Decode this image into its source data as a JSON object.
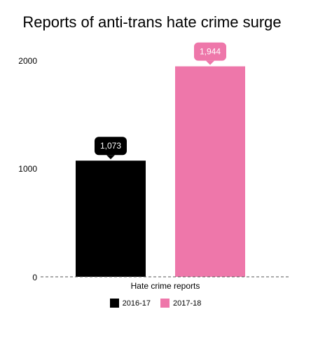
{
  "chart_data": {
    "type": "bar",
    "title": "Reports of anti-trans hate crime surge",
    "categories": [
      "Hate crime reports"
    ],
    "xlabel": "Hate crime reports",
    "ylabel": "",
    "ylim": [
      0,
      2000
    ],
    "yticks": [
      "0",
      "1000",
      "2000"
    ],
    "grid": false,
    "legend_position": "bottom",
    "series": [
      {
        "name": "2016-17",
        "values": [
          1073
        ],
        "label": "1,073",
        "color": "#000000"
      },
      {
        "name": "2017-18",
        "values": [
          1944
        ],
        "label": "1,944",
        "color": "#ee77aa"
      }
    ]
  }
}
